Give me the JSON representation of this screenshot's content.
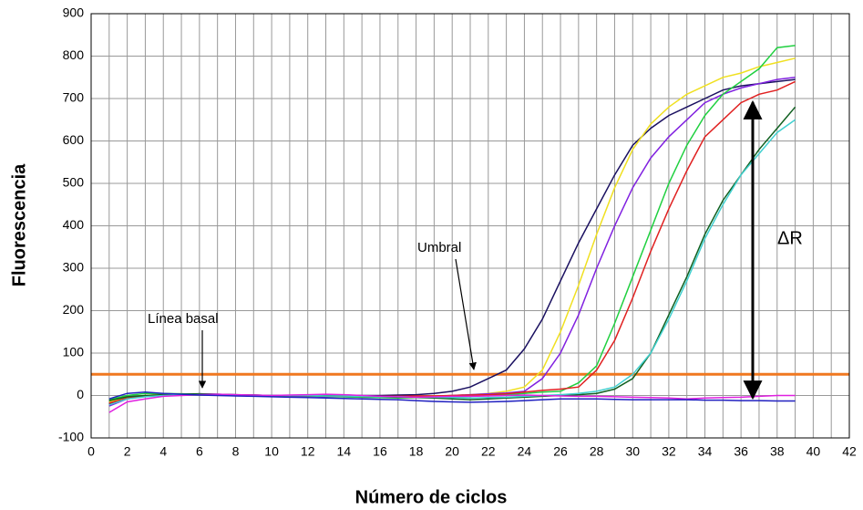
{
  "chart_data": {
    "type": "line",
    "xlabel": "Número de ciclos",
    "ylabel": "Fluorescencia",
    "x": [
      1,
      2,
      3,
      4,
      5,
      6,
      7,
      8,
      9,
      10,
      11,
      12,
      13,
      14,
      15,
      16,
      17,
      18,
      19,
      20,
      21,
      22,
      23,
      24,
      25,
      26,
      27,
      28,
      29,
      30,
      31,
      32,
      33,
      34,
      35,
      36,
      37,
      38,
      39
    ],
    "xlim": [
      0,
      42
    ],
    "xticks": [
      0,
      2,
      4,
      6,
      8,
      10,
      12,
      14,
      16,
      18,
      20,
      22,
      24,
      26,
      28,
      30,
      32,
      34,
      36,
      38,
      40,
      42
    ],
    "ylim": [
      -100,
      900
    ],
    "yticks": [
      -100,
      0,
      100,
      200,
      300,
      400,
      500,
      600,
      700,
      800,
      900
    ],
    "grid": true,
    "threshold": 50,
    "threshold_color": "#f07820",
    "annotations": [
      "Umbral",
      "Línea basal",
      "ΔR"
    ],
    "series": [
      {
        "color": "#1a1060",
        "values": [
          -20,
          -5,
          0,
          2,
          3,
          2,
          1,
          0,
          1,
          0,
          -1,
          0,
          0,
          1,
          0,
          0,
          1,
          2,
          5,
          10,
          20,
          40,
          60,
          110,
          180,
          270,
          360,
          440,
          520,
          590,
          630,
          660,
          680,
          700,
          720,
          730,
          735,
          740,
          745
        ]
      },
      {
        "color": "#f0e020",
        "values": [
          -15,
          -5,
          0,
          3,
          4,
          3,
          2,
          1,
          0,
          0,
          0,
          1,
          0,
          -2,
          -3,
          -4,
          -3,
          -2,
          -1,
          0,
          2,
          5,
          10,
          20,
          60,
          150,
          260,
          380,
          490,
          580,
          640,
          680,
          710,
          730,
          750,
          760,
          775,
          785,
          795
        ]
      },
      {
        "color": "#8020e0",
        "values": [
          -25,
          -8,
          -2,
          2,
          3,
          4,
          3,
          2,
          0,
          -1,
          -2,
          -2,
          -3,
          -3,
          -4,
          -5,
          -4,
          -3,
          -2,
          0,
          2,
          4,
          6,
          10,
          40,
          100,
          190,
          300,
          400,
          490,
          560,
          610,
          650,
          690,
          710,
          725,
          735,
          745,
          750
        ]
      },
      {
        "color": "#20d040",
        "values": [
          -10,
          0,
          5,
          5,
          4,
          3,
          2,
          1,
          0,
          0,
          0,
          -1,
          -2,
          -3,
          -4,
          -5,
          -6,
          -5,
          -4,
          -3,
          -2,
          0,
          2,
          5,
          8,
          10,
          30,
          70,
          170,
          280,
          390,
          500,
          590,
          660,
          710,
          740,
          770,
          820,
          825
        ]
      },
      {
        "color": "#e02020",
        "values": [
          -18,
          -6,
          -1,
          1,
          2,
          3,
          2,
          1,
          0,
          0,
          0,
          0,
          -1,
          -1,
          -2,
          -2,
          -2,
          -1,
          -1,
          0,
          1,
          2,
          4,
          8,
          12,
          15,
          20,
          60,
          130,
          230,
          340,
          440,
          530,
          610,
          650,
          690,
          710,
          720,
          740
        ]
      },
      {
        "color": "#106020",
        "values": [
          -12,
          -3,
          0,
          2,
          3,
          4,
          3,
          2,
          1,
          0,
          0,
          0,
          0,
          -1,
          -2,
          -3,
          -4,
          -5,
          -6,
          -8,
          -10,
          -8,
          -6,
          -4,
          -2,
          0,
          2,
          5,
          15,
          40,
          100,
          190,
          280,
          380,
          460,
          520,
          580,
          630,
          680
        ]
      },
      {
        "color": "#40d0d0",
        "values": [
          -22,
          -8,
          -3,
          0,
          1,
          2,
          2,
          1,
          0,
          0,
          0,
          0,
          -1,
          -1,
          -2,
          -3,
          -3,
          -4,
          -4,
          -5,
          -6,
          -5,
          -4,
          -2,
          0,
          2,
          5,
          10,
          20,
          50,
          100,
          180,
          270,
          370,
          450,
          520,
          570,
          620,
          650
        ]
      },
      {
        "color": "#e020e0",
        "values": [
          -40,
          -15,
          -8,
          -2,
          0,
          2,
          3,
          2,
          1,
          0,
          1,
          2,
          3,
          2,
          0,
          -2,
          -3,
          -4,
          -3,
          -2,
          -2,
          -1,
          0,
          1,
          0,
          -1,
          -2,
          -2,
          -3,
          -4,
          -5,
          -6,
          -8,
          -6,
          -5,
          -4,
          -2,
          0,
          0
        ]
      },
      {
        "color": "#2020c0",
        "values": [
          -8,
          5,
          8,
          5,
          3,
          1,
          0,
          -1,
          -2,
          -3,
          -4,
          -5,
          -6,
          -7,
          -8,
          -9,
          -10,
          -12,
          -14,
          -15,
          -16,
          -15,
          -14,
          -12,
          -10,
          -8,
          -8,
          -8,
          -9,
          -10,
          -10,
          -10,
          -10,
          -11,
          -11,
          -12,
          -12,
          -13,
          -13
        ]
      }
    ]
  }
}
